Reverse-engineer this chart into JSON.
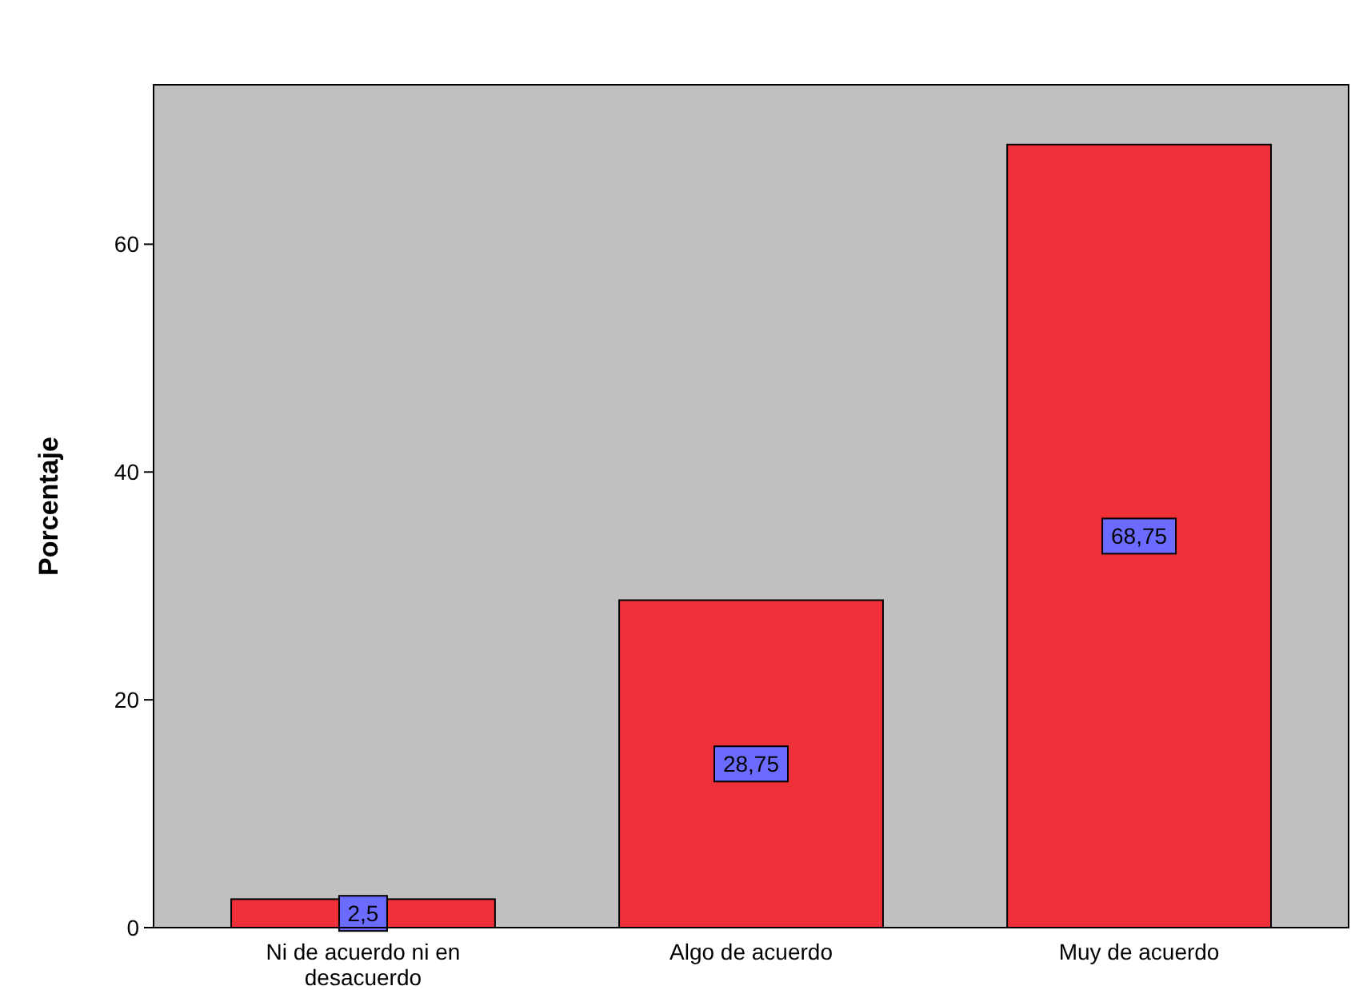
{
  "chart_data": {
    "type": "bar",
    "ylabel": "Porcentaje",
    "categories": [
      "Ni de acuerdo ni en desacuerdo",
      "Algo de acuerdo",
      "Muy de acuerdo"
    ],
    "values": [
      2.5,
      28.75,
      68.75
    ],
    "color": "#ef3038",
    "value_labels": [
      "2,5",
      "28,75",
      "68,75"
    ],
    "ylim": [
      0,
      74
    ],
    "yticks": [
      0,
      20,
      40,
      60
    ],
    "grid": false
  }
}
